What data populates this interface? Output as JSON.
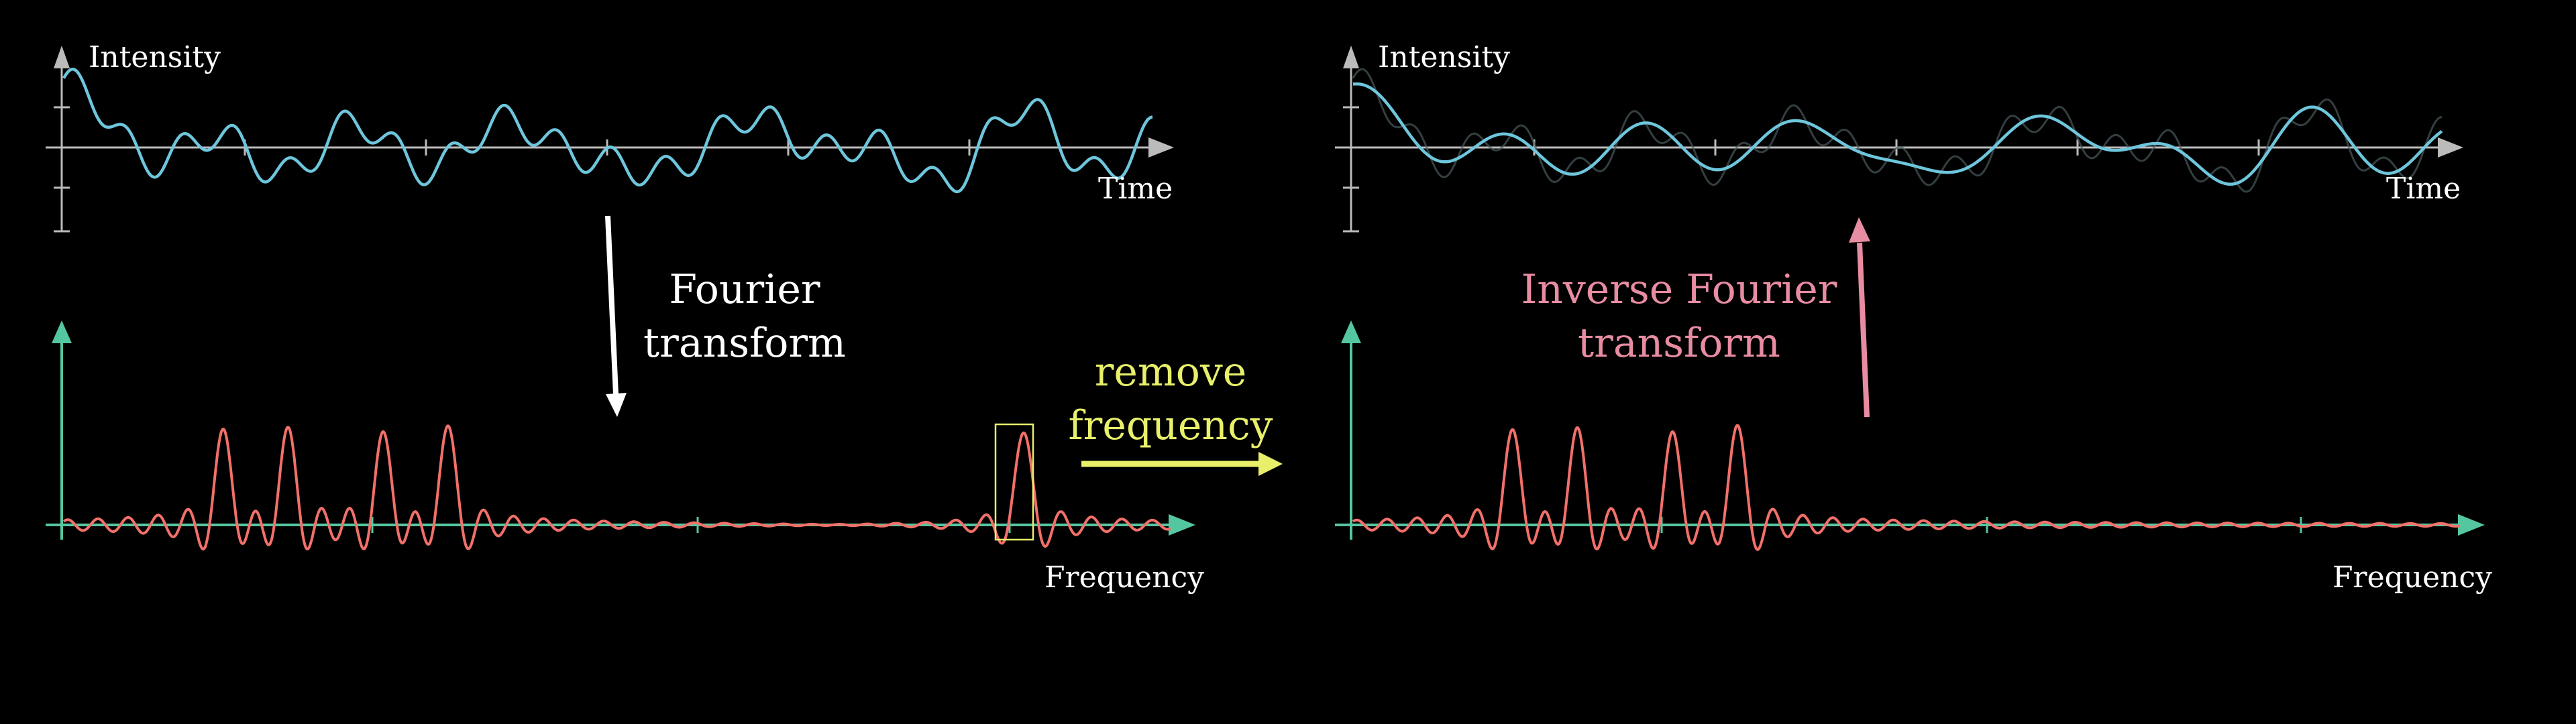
{
  "labels": {
    "intensity": "Intensity",
    "time": "Time",
    "frequency": "Frequency",
    "fourier_line1": "Fourier",
    "fourier_line2": "transform",
    "inverse_line1": "Inverse Fourier",
    "inverse_line2": "transform",
    "remove_line1": "remove",
    "remove_line2": "frequency"
  },
  "colors": {
    "background": "#000000",
    "axis": "#bbbbbb",
    "signal": "#6ec6dc",
    "spectrum": "#f2706a",
    "freq_axis": "#55c7a0",
    "highlight": "#e8f06a",
    "inverse": "#e88ca2",
    "arrow": "#ffffff"
  },
  "spectrum_left": {
    "peaks": [
      {
        "freq": 2.5,
        "height": 1.0
      },
      {
        "freq": 3.5,
        "height": 1.0
      },
      {
        "freq": 5.0,
        "height": 0.95
      },
      {
        "freq": 6.0,
        "height": 1.05
      },
      {
        "freq": 15.0,
        "height": 1.05
      }
    ],
    "removed_freq": 15.0
  },
  "spectrum_right": {
    "peaks": [
      {
        "freq": 2.5,
        "height": 1.0
      },
      {
        "freq": 3.5,
        "height": 1.0
      },
      {
        "freq": 5.0,
        "height": 0.95
      },
      {
        "freq": 6.0,
        "height": 1.05
      }
    ]
  },
  "icons": {
    "down_arrow": "arrow-down-icon",
    "up_arrow": "arrow-up-icon",
    "right_arrow": "arrow-right-icon"
  }
}
